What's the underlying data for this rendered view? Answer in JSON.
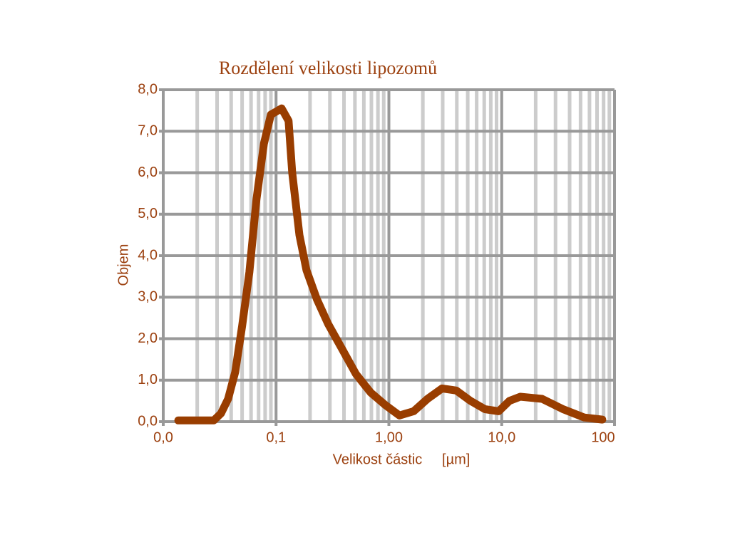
{
  "chart_data": {
    "type": "line",
    "title": "Rozdělení velikosti lipozomů",
    "x_label": "Velikost částic     [µm]",
    "y_label": "Objem",
    "log_x": true,
    "grid": true,
    "minor_grid": true,
    "xlim": [
      0.01,
      100
    ],
    "ylim": [
      0,
      8
    ],
    "xticks": [
      {
        "value": 0.01,
        "label": "0,0"
      },
      {
        "value": 0.1,
        "label": "0,1"
      },
      {
        "value": 1,
        "label": "1,00"
      },
      {
        "value": 10,
        "label": "10,0"
      },
      100
    ],
    "yticks": [
      {
        "value": 0,
        "label": "0,0"
      },
      {
        "value": 1,
        "label": "1,0"
      },
      {
        "value": 2,
        "label": "2,0"
      },
      {
        "value": 3,
        "label": "3,0"
      },
      {
        "value": 4,
        "label": "4,0"
      },
      {
        "value": 5,
        "label": "5,0"
      },
      {
        "value": 6,
        "label": "6,0"
      },
      {
        "value": 7,
        "label": "7,0"
      },
      {
        "value": 8,
        "label": "8,0"
      }
    ],
    "x": [
      0.0136,
      0.028,
      0.0325,
      0.0376,
      0.0435,
      0.05,
      0.058,
      0.067,
      0.078,
      0.09,
      0.112,
      0.129,
      0.139,
      0.161,
      0.186,
      0.23,
      0.29,
      0.385,
      0.51,
      0.69,
      0.93,
      1.24,
      1.66,
      2.2,
      2.96,
      3.96,
      5.3,
      7.1,
      9.4,
      11.7,
      14.6,
      22.8,
      35,
      54,
      78
    ],
    "series": [
      {
        "color": "#993d00",
        "values": [
          0.03,
          0.03,
          0.2,
          0.55,
          1.2,
          2.3,
          3.6,
          5.35,
          6.7,
          7.4,
          7.55,
          7.25,
          6.0,
          4.5,
          3.65,
          2.95,
          2.35,
          1.75,
          1.15,
          0.7,
          0.4,
          0.15,
          0.25,
          0.55,
          0.8,
          0.75,
          0.5,
          0.3,
          0.25,
          0.5,
          0.6,
          0.55,
          0.3,
          0.1,
          0.05
        ]
      }
    ]
  }
}
